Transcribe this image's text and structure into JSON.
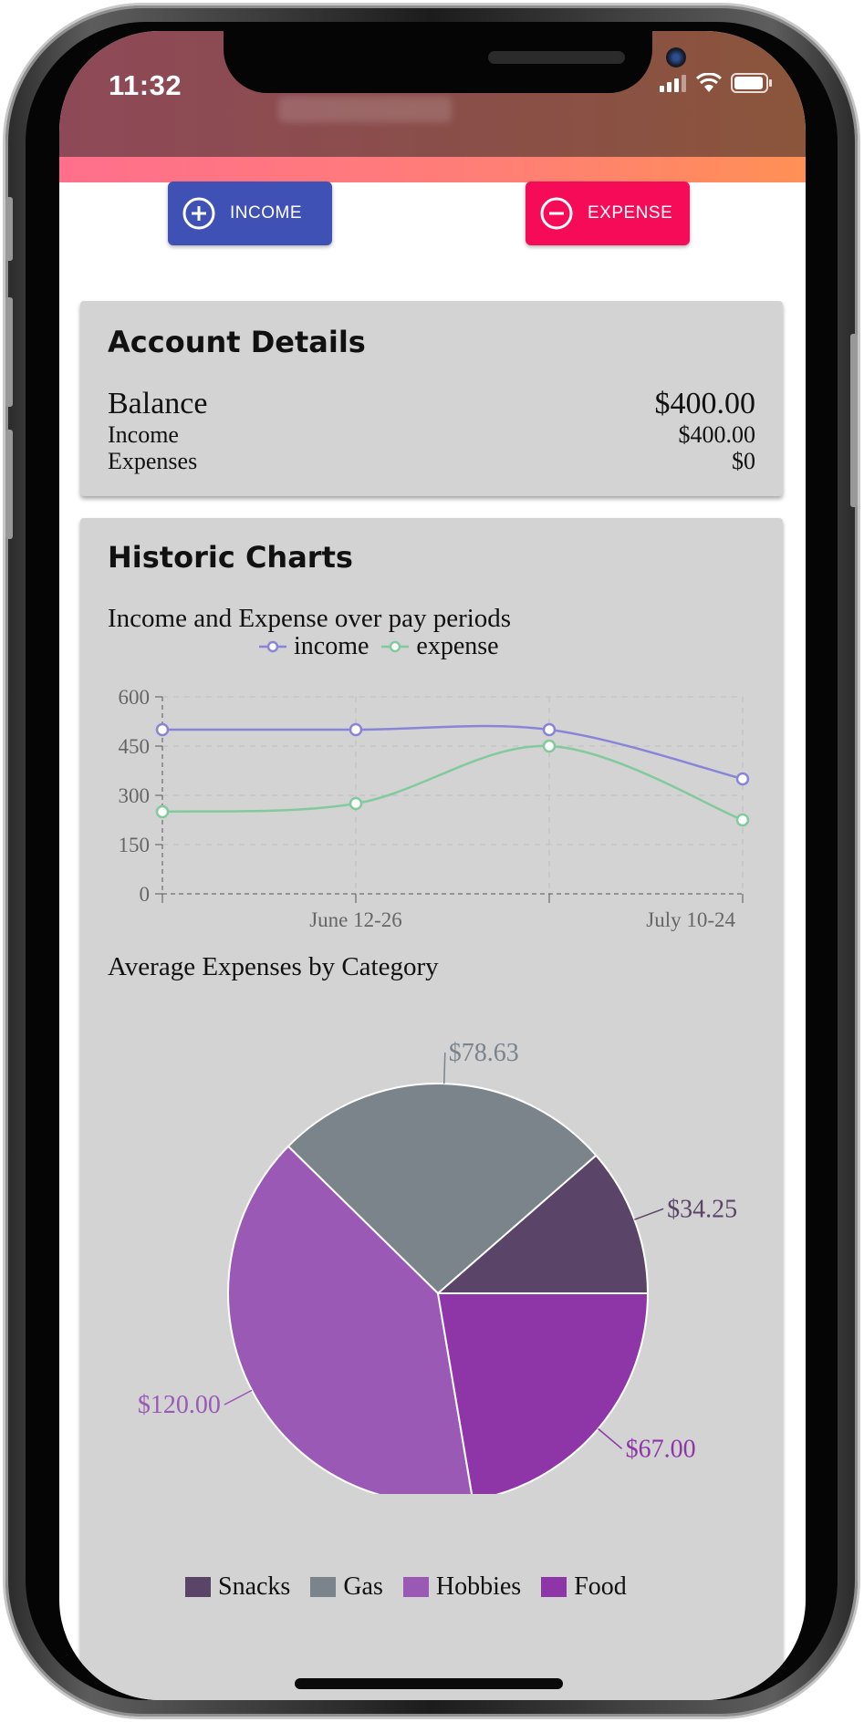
{
  "status_bar": {
    "time": "11:32"
  },
  "actions": {
    "income_label": "INCOME",
    "expense_label": "EXPENSE"
  },
  "account": {
    "title": "Account Details",
    "balance_label": "Balance",
    "balance_value": "$400.00",
    "income_label": "Income",
    "income_value": "$400.00",
    "expenses_label": "Expenses",
    "expenses_value": "$0"
  },
  "historic": {
    "title": "Historic Charts"
  },
  "colors": {
    "income_btn": "#3f51b5",
    "expense_btn": "#f50b57",
    "income_line": "#8884d8",
    "expense_line": "#82ca9d",
    "snacks": "#5a4568",
    "gas": "#7b838b",
    "hobbies": "#9b59b6",
    "food": "#8e35a8"
  },
  "chart_data": [
    {
      "type": "line",
      "title": "Income and Expense over pay periods",
      "x": [
        "",
        "June 12-26",
        "",
        "July 10-24"
      ],
      "xtick_labels_shown": [
        "June 12-26",
        "July 10-24"
      ],
      "series": [
        {
          "name": "income",
          "values": [
            500,
            500,
            500,
            350
          ]
        },
        {
          "name": "expense",
          "values": [
            250,
            275,
            450,
            225
          ]
        }
      ],
      "ylim": [
        0,
        600
      ],
      "yticks": [
        "0",
        "150",
        "300",
        "450",
        "600"
      ],
      "grid": true,
      "legend": "top-center"
    },
    {
      "type": "pie",
      "title": "Average Expenses by Category",
      "categories": [
        "Snacks",
        "Gas",
        "Hobbies",
        "Food"
      ],
      "values": [
        34.25,
        78.63,
        120.0,
        67.0
      ],
      "labels": [
        "$34.25",
        "$78.63",
        "$120.00",
        "$67.00"
      ],
      "legend": "bottom"
    }
  ]
}
